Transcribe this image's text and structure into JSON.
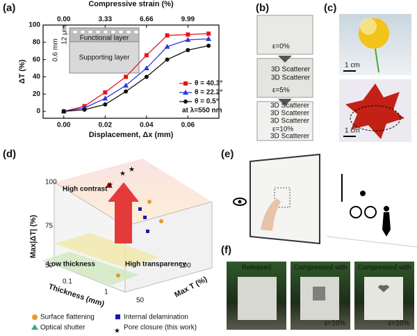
{
  "chart_data": {
    "type": "line",
    "panel": "(a)",
    "x_label": "Displacement, Δx (mm)",
    "y_label": "ΔT (%)",
    "x2_label": "Compressive strain (%)",
    "x": [
      0,
      0.01,
      0.02,
      0.03,
      0.04,
      0.05,
      0.06,
      0.07
    ],
    "series": [
      {
        "name": "θ = 40.3°",
        "color": "#e8141b",
        "marker": "square",
        "values": [
          0,
          6,
          22,
          40,
          65,
          88,
          89,
          90
        ]
      },
      {
        "name": "θ = 22.2°",
        "color": "#2a3bd8",
        "marker": "triangle",
        "values": [
          0,
          4,
          15,
          30,
          50,
          75,
          83,
          84
        ]
      },
      {
        "name": "θ = 0.5°",
        "color": "#111111",
        "marker": "circle",
        "values": [
          0,
          2,
          8,
          23,
          40,
          60,
          71,
          76
        ]
      }
    ],
    "xlim": [
      -0.01,
      0.075
    ],
    "xticks": [
      {
        "value": 0,
        "label": "0.00"
      },
      0.02,
      0.04,
      0.06
    ],
    "x2lim": [
      -1.665,
      12.4875
    ],
    "x2ticks": [
      {
        "value": 0,
        "label": "0.00"
      },
      3.33,
      6.66,
      9.99
    ],
    "ylim": [
      -8,
      100
    ],
    "yticks": [
      0,
      20,
      40,
      60,
      80,
      100
    ],
    "annotation": "at λ=550 nm",
    "inset": {
      "top": "Functional layer",
      "bottom": "Supporting layer",
      "thin": "12 μm",
      "thick": "0.6 mm"
    }
  },
  "panels": {
    "b": {
      "label": "(b)",
      "text": "3D Scatterer",
      "strains": [
        "ε=0%",
        "ε=5%",
        "ε=10%"
      ]
    },
    "c": {
      "label": "(c)",
      "scale": "1 cm"
    },
    "d": {
      "label": "(d)",
      "z_label": "Max|ΔT| (%)",
      "x_label": "Thickness (mm)",
      "y_label": "Max T (%)",
      "z_ticks": [
        100,
        75,
        50
      ],
      "y_ticks": [
        100,
        50
      ],
      "x_ticks": [
        0.1,
        1
      ],
      "regions": [
        "High contrast",
        "High transparency",
        "Low thickness"
      ],
      "legend": [
        "Surface flattening",
        "Internal delamination",
        "Optical shutter",
        "Pore closure (this work)"
      ]
    },
    "e": {
      "label": "(e)"
    },
    "f": {
      "label": "(f)",
      "captions": [
        "Released",
        "Compressed with",
        "Compressed with"
      ],
      "strain": "ε=10%"
    }
  }
}
